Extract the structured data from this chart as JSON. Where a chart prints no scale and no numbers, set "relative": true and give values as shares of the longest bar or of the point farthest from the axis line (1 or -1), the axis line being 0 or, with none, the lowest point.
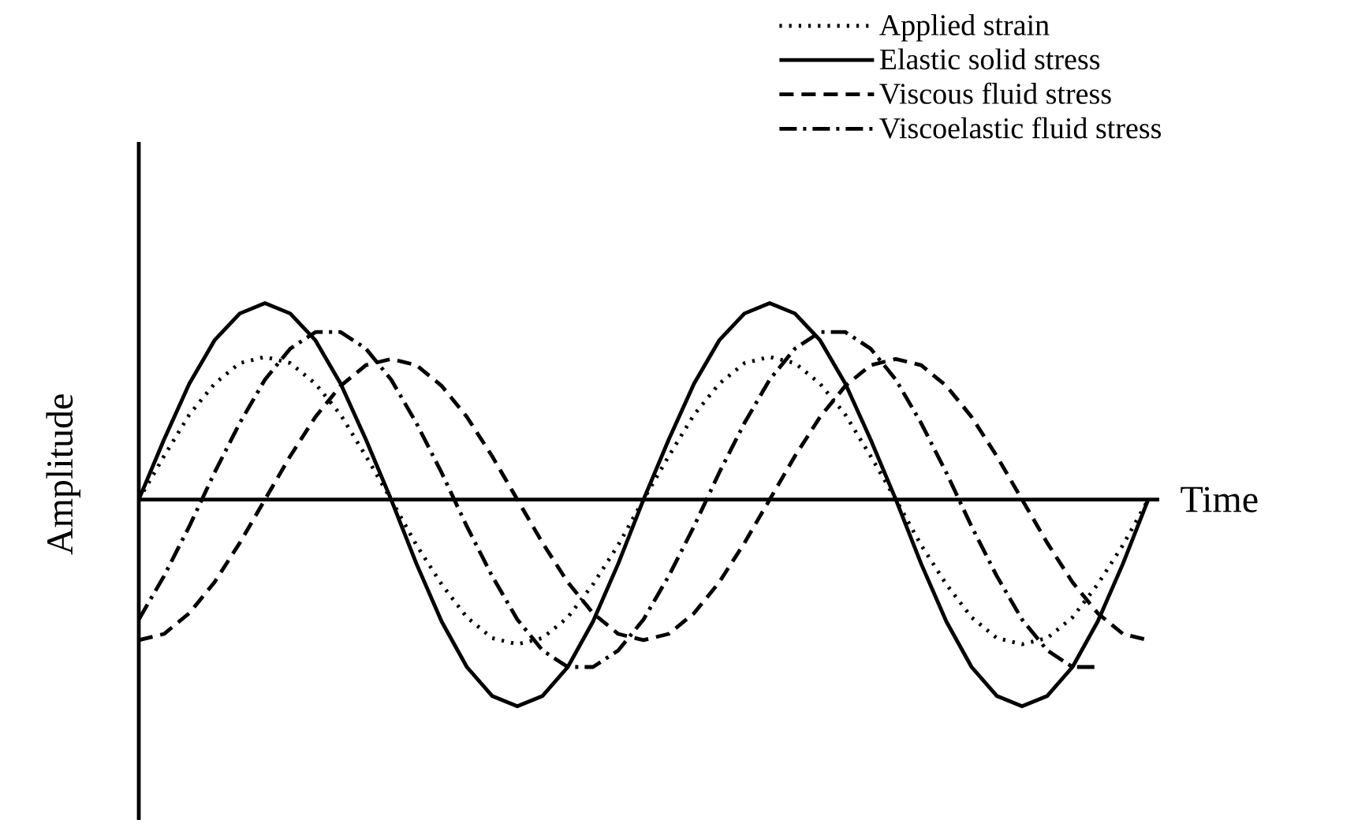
{
  "chart_data": {
    "type": "line",
    "relative": true,
    "xlabel": "Time",
    "ylabel": "Amplitude",
    "legend": "top right",
    "categories": [
      null,
      null,
      null,
      null,
      null,
      null,
      null,
      null,
      null,
      null,
      null,
      null,
      null,
      null,
      null,
      null,
      null,
      null,
      null,
      null,
      null,
      null,
      null,
      null,
      null,
      null,
      null,
      null,
      null,
      null,
      null,
      null,
      null,
      null,
      null,
      null,
      null,
      null,
      null,
      null,
      null
    ],
    "series": [
      {
        "name": "Applied strain",
        "color": "#000000",
        "line_style": "dotted",
        "values": [
          0,
          0.21,
          0.41,
          0.56,
          0.66,
          0.69,
          0.66,
          0.56,
          0.41,
          0.21,
          0,
          -0.22,
          -0.41,
          -0.57,
          -0.67,
          -0.7,
          -0.67,
          -0.57,
          -0.41,
          -0.22,
          0,
          0.21,
          0.41,
          0.56,
          0.66,
          0.69,
          0.66,
          0.56,
          0.41,
          0.21,
          0,
          -0.22,
          -0.41,
          -0.57,
          -0.67,
          -0.7,
          -0.67,
          -0.57,
          -0.41,
          -0.22,
          0
        ]
      },
      {
        "name": "Elastic solid stress",
        "color": "#000000",
        "line_style": "solid",
        "values": [
          0,
          0.29,
          0.56,
          0.77,
          0.9,
          0.95,
          0.9,
          0.77,
          0.56,
          0.29,
          0,
          -0.31,
          -0.59,
          -0.81,
          -0.95,
          -1,
          -0.95,
          -0.81,
          -0.59,
          -0.31,
          0,
          0.29,
          0.56,
          0.77,
          0.9,
          0.95,
          0.9,
          0.77,
          0.56,
          0.29,
          0,
          -0.31,
          -0.59,
          -0.81,
          -0.95,
          -1,
          -0.95,
          -0.81,
          -0.59,
          -0.31,
          0
        ]
      },
      {
        "name": "Viscous fluid stress",
        "color": "#000000",
        "line_style": "dashed",
        "values": [
          -0.68,
          -0.65,
          -0.55,
          -0.4,
          -0.21,
          0,
          0.21,
          0.4,
          0.55,
          0.65,
          0.68,
          0.65,
          0.55,
          0.4,
          0.21,
          0,
          -0.21,
          -0.4,
          -0.55,
          -0.65,
          -0.68,
          -0.65,
          -0.55,
          -0.4,
          -0.21,
          0,
          0.21,
          0.4,
          0.55,
          0.65,
          0.68,
          0.65,
          0.55,
          0.4,
          0.21,
          0,
          -0.21,
          -0.4,
          -0.55,
          -0.65,
          -0.68
        ]
      },
      {
        "name": "Viscoelastic fluid stress",
        "color": "#000000",
        "line_style": "dashdot",
        "values": [
          -0.58,
          -0.37,
          -0.13,
          0.13,
          0.37,
          0.58,
          0.73,
          0.81,
          0.81,
          0.73,
          0.58,
          0.37,
          0.13,
          -0.13,
          -0.37,
          -0.58,
          -0.73,
          -0.81,
          -0.81,
          -0.73,
          -0.58,
          -0.37,
          -0.13,
          0.13,
          0.37,
          0.58,
          0.73,
          0.81,
          0.81,
          0.73,
          0.58,
          0.37,
          0.13,
          -0.13,
          -0.37,
          -0.58,
          -0.73,
          -0.81,
          -0.81,
          null,
          null
        ]
      }
    ]
  }
}
